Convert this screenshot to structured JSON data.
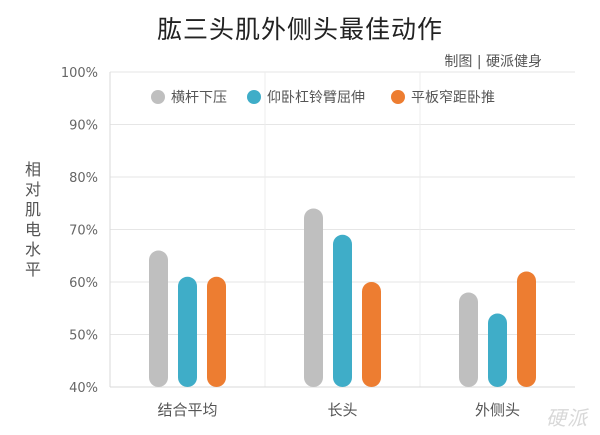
{
  "chart_data": {
    "type": "bar",
    "title": "肱三头肌外侧头最佳动作",
    "subtitle": "制图 | 硬派健身",
    "ylabel": "相对肌电水平",
    "xlabel": "",
    "ylim": [
      40,
      100
    ],
    "yticks": [
      "40%",
      "50%",
      "60%",
      "70%",
      "80%",
      "90%",
      "100%"
    ],
    "ytick_values": [
      40,
      50,
      60,
      70,
      80,
      90,
      100
    ],
    "grid": true,
    "legend_position": "top",
    "categories": [
      "结合平均",
      "长头",
      "外侧头"
    ],
    "series": [
      {
        "name": "横杆下压",
        "color": "#bfbfbf",
        "values": [
          66,
          74,
          58
        ]
      },
      {
        "name": "仰卧杠铃臂屈伸",
        "color": "#3fadc8",
        "values": [
          61,
          69,
          54
        ]
      },
      {
        "name": "平板窄距卧推",
        "color": "#ed7d31",
        "values": [
          61,
          60,
          62
        ]
      }
    ]
  },
  "watermark": "硬派"
}
